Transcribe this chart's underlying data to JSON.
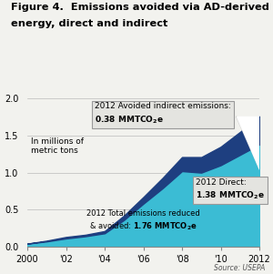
{
  "title_line1": "Figure 4.  Emissions avoided via AD-derived",
  "title_line2": "energy, direct and indirect",
  "source": "Source: USEPA",
  "years": [
    2000,
    2001,
    2002,
    2003,
    2004,
    2005,
    2006,
    2007,
    2008,
    2009,
    2010,
    2011,
    2012
  ],
  "direct": [
    0.04,
    0.07,
    0.11,
    0.14,
    0.18,
    0.36,
    0.58,
    0.79,
    1.02,
    1.0,
    1.1,
    1.24,
    1.38
  ],
  "indirect": [
    0.0,
    0.01,
    0.02,
    0.02,
    0.03,
    0.06,
    0.09,
    0.14,
    0.19,
    0.21,
    0.25,
    0.31,
    0.38
  ],
  "color_direct": "#3BBCD4",
  "color_indirect": "#1E3F80",
  "xlim": [
    2000,
    2012
  ],
  "ylim": [
    0.0,
    2.0
  ],
  "yticks": [
    0.0,
    0.5,
    1.0,
    1.5,
    2.0
  ],
  "xtick_labels": [
    "2000",
    "'02",
    "'04",
    "'06",
    "'08",
    "'10",
    "2012"
  ],
  "xtick_vals": [
    2000,
    2002,
    2004,
    2006,
    2008,
    2010,
    2012
  ],
  "ylabel_text": "In millions of\nmetric tons",
  "bg_color": "#F2F2EE",
  "box_facecolor": "#E4E4E0",
  "box_edgecolor": "#999999",
  "curl_white": "#FFFFFF",
  "curl_gray": "#BBBBBB"
}
